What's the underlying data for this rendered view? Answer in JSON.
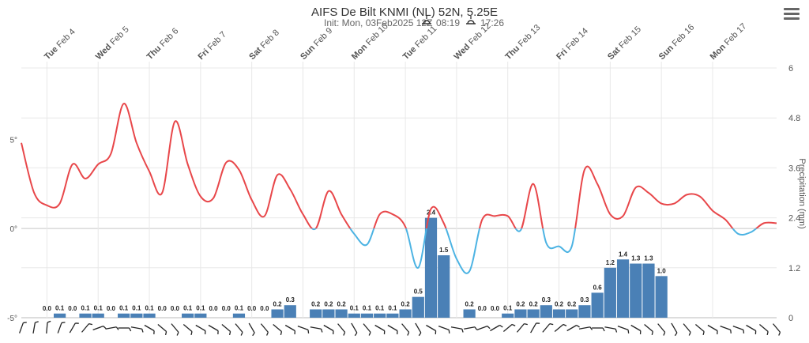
{
  "title": "AIFS De Bilt KNMI (NL) 52N, 5.25E",
  "subtitle": {
    "init": "Init: Mon, 03Feb2025 12Z",
    "sunrise": "08:19",
    "sunset": "17:26"
  },
  "menu_icon": "hamburger-menu-icon",
  "colors": {
    "temp_above": "#e8474a",
    "temp_below": "#4cb3e3",
    "precip": "#4a80b6",
    "grid": "#e8e8e8",
    "axis_text": "#555555"
  },
  "chart_data": {
    "type": "line+bar",
    "x_range": [
      "2025-02-03 12:00",
      "2025-02-18 06:00"
    ],
    "day_labels": [
      {
        "date": "2025-02-04",
        "day": "Tue",
        "label": "Feb 4"
      },
      {
        "date": "2025-02-05",
        "day": "Wed",
        "label": "Feb 5"
      },
      {
        "date": "2025-02-06",
        "day": "Thu",
        "label": "Feb 6"
      },
      {
        "date": "2025-02-07",
        "day": "Fri",
        "label": "Feb 7"
      },
      {
        "date": "2025-02-08",
        "day": "Sat",
        "label": "Feb 8"
      },
      {
        "date": "2025-02-09",
        "day": "Sun",
        "label": "Feb 9"
      },
      {
        "date": "2025-02-10",
        "day": "Mon",
        "label": "Feb 10"
      },
      {
        "date": "2025-02-11",
        "day": "Tue",
        "label": "Feb 11"
      },
      {
        "date": "2025-02-12",
        "day": "Wed",
        "label": "Feb 12"
      },
      {
        "date": "2025-02-13",
        "day": "Thu",
        "label": "Feb 13"
      },
      {
        "date": "2025-02-14",
        "day": "Fri",
        "label": "Feb 14"
      },
      {
        "date": "2025-02-15",
        "day": "Sat",
        "label": "Feb 15"
      },
      {
        "date": "2025-02-16",
        "day": "Sun",
        "label": "Feb 16"
      },
      {
        "date": "2025-02-17",
        "day": "Mon",
        "label": "Feb 17"
      }
    ],
    "y_left": {
      "ticks": [
        "5°",
        "0°",
        "-5°"
      ],
      "tick_values": [
        5,
        0,
        -5
      ],
      "range": [
        -5,
        9
      ]
    },
    "y_right": {
      "label": "Precipitation (mm)",
      "ticks": [
        "6",
        "4.8",
        "3.6",
        "2.4",
        "1.2",
        "0"
      ],
      "tick_values": [
        6,
        4.8,
        3.6,
        2.4,
        1.2,
        0
      ],
      "range": [
        0,
        6
      ]
    },
    "temperature": {
      "time": [
        "2025-02-03 12:00",
        "2025-02-03 18:00",
        "2025-02-04 00:00",
        "2025-02-04 06:00",
        "2025-02-04 12:00",
        "2025-02-04 18:00",
        "2025-02-05 00:00",
        "2025-02-05 06:00",
        "2025-02-05 12:00",
        "2025-02-05 18:00",
        "2025-02-06 00:00",
        "2025-02-06 06:00",
        "2025-02-06 12:00",
        "2025-02-06 18:00",
        "2025-02-07 00:00",
        "2025-02-07 06:00",
        "2025-02-07 12:00",
        "2025-02-07 18:00",
        "2025-02-08 00:00",
        "2025-02-08 06:00",
        "2025-02-08 12:00",
        "2025-02-08 18:00",
        "2025-02-09 00:00",
        "2025-02-09 06:00",
        "2025-02-09 12:00",
        "2025-02-09 18:00",
        "2025-02-10 00:00",
        "2025-02-10 06:00",
        "2025-02-10 12:00",
        "2025-02-10 18:00",
        "2025-02-11 00:00",
        "2025-02-11 06:00",
        "2025-02-11 12:00",
        "2025-02-11 18:00",
        "2025-02-12 00:00",
        "2025-02-12 06:00",
        "2025-02-12 12:00",
        "2025-02-12 18:00",
        "2025-02-13 00:00",
        "2025-02-13 06:00",
        "2025-02-13 12:00",
        "2025-02-13 18:00",
        "2025-02-14 00:00",
        "2025-02-14 06:00",
        "2025-02-14 12:00",
        "2025-02-14 18:00",
        "2025-02-15 00:00",
        "2025-02-15 06:00",
        "2025-02-15 12:00",
        "2025-02-15 18:00",
        "2025-02-16 00:00",
        "2025-02-16 06:00",
        "2025-02-16 12:00",
        "2025-02-16 18:00",
        "2025-02-17 00:00",
        "2025-02-17 06:00",
        "2025-02-17 12:00",
        "2025-02-17 18:00",
        "2025-02-18 00:00",
        "2025-02-18 06:00"
      ],
      "values": [
        4.8,
        2.0,
        1.3,
        1.4,
        3.6,
        2.8,
        3.6,
        4.2,
        7.0,
        4.8,
        3.2,
        2.0,
        6.0,
        3.6,
        1.8,
        1.7,
        3.7,
        3.3,
        1.6,
        0.7,
        3.0,
        2.2,
        0.8,
        0.0,
        2.1,
        0.8,
        -0.3,
        -0.9,
        0.8,
        0.8,
        0.1,
        -2.2,
        1.1,
        0.3,
        -1.7,
        -2.4,
        0.5,
        0.7,
        0.7,
        -0.1,
        2.5,
        -0.8,
        -1.0,
        -1.0,
        3.3,
        2.5,
        0.8,
        0.7,
        2.3,
        2.0,
        1.4,
        1.4,
        1.9,
        1.8,
        1.0,
        0.5,
        -0.3,
        -0.2,
        0.3,
        0.3
      ]
    },
    "precipitation": {
      "time": [
        "2025-02-04 00:00",
        "2025-02-04 06:00",
        "2025-02-04 12:00",
        "2025-02-04 18:00",
        "2025-02-05 00:00",
        "2025-02-05 06:00",
        "2025-02-05 12:00",
        "2025-02-05 18:00",
        "2025-02-06 00:00",
        "2025-02-06 06:00",
        "2025-02-06 12:00",
        "2025-02-06 18:00",
        "2025-02-07 00:00",
        "2025-02-07 06:00",
        "2025-02-07 12:00",
        "2025-02-07 18:00",
        "2025-02-08 00:00",
        "2025-02-08 06:00",
        "2025-02-08 12:00",
        "2025-02-08 18:00",
        "2025-02-09 06:00",
        "2025-02-09 12:00",
        "2025-02-09 18:00",
        "2025-02-10 00:00",
        "2025-02-10 06:00",
        "2025-02-10 12:00",
        "2025-02-10 18:00",
        "2025-02-11 00:00",
        "2025-02-11 06:00",
        "2025-02-11 12:00",
        "2025-02-11 18:00",
        "2025-02-12 06:00",
        "2025-02-12 12:00",
        "2025-02-12 18:00",
        "2025-02-13 00:00",
        "2025-02-13 06:00",
        "2025-02-13 12:00",
        "2025-02-13 18:00",
        "2025-02-14 00:00",
        "2025-02-14 06:00",
        "2025-02-14 12:00",
        "2025-02-14 18:00",
        "2025-02-15 00:00",
        "2025-02-15 06:00",
        "2025-02-15 12:00",
        "2025-02-15 18:00",
        "2025-02-16 00:00",
        "2025-02-16 06:00",
        "2025-02-16 12:00",
        "2025-02-16 18:00",
        "2025-02-17 00:00",
        "2025-02-17 06:00",
        "2025-02-17 12:00",
        "2025-02-17 18:00"
      ],
      "values": [
        0.0,
        0.1,
        0.0,
        0.1,
        0.1,
        0.0,
        0.1,
        0.1,
        0.1,
        0.0,
        0.0,
        0.1,
        0.1,
        0.0,
        0.0,
        0.1,
        0.0,
        0.0,
        0.2,
        0.3,
        0.2,
        0.2,
        0.2,
        0.1,
        0.1,
        0.1,
        0.1,
        0.2,
        0.5,
        2.4,
        1.5,
        0.2,
        0.0,
        0.0,
        0.1,
        0.2,
        0.2,
        0.3,
        0.2,
        0.2,
        0.3,
        0.6,
        1.2,
        1.4,
        1.3,
        1.3,
        1.0,
        0.0,
        0.0,
        0.0,
        0.0,
        0.0,
        0.0,
        0.0
      ],
      "labels": [
        "0.0",
        "0.1",
        "0.0",
        "0.1",
        "0.1",
        "0.0",
        "0.1",
        "0.1",
        "0.1",
        "0.0",
        "0.0",
        "0.1",
        "0.1",
        "0.0",
        "0.0",
        "0.1",
        "0.0",
        "0.0",
        "0.2",
        "0.3",
        "0.2",
        "0.2",
        "0.2",
        "0.1",
        "0.1",
        "0.1",
        "0.1",
        "0.2",
        "0.5",
        "2.4",
        "1.5",
        "0.2",
        "0.0",
        "0.0",
        "0.1",
        "0.2",
        "0.2",
        "0.3",
        "0.2",
        "0.2",
        "0.3",
        "0.6",
        "1.2",
        "1.4",
        "1.3",
        "1.3",
        "1.0",
        "",
        "",
        "",
        "",
        "",
        "",
        ""
      ]
    },
    "wind_barb_directions_deg": [
      200,
      190,
      185,
      200,
      210,
      220,
      250,
      260,
      270,
      280,
      300,
      310,
      320,
      310,
      300,
      300,
      310,
      320,
      330,
      320,
      310,
      300,
      290,
      280,
      300,
      320,
      330,
      320,
      300,
      300,
      320,
      330,
      300,
      290,
      280,
      260,
      250,
      240,
      230,
      220,
      210,
      220,
      230,
      240,
      260,
      270,
      280,
      290,
      300,
      310,
      320,
      330,
      320,
      310,
      300,
      290,
      290,
      300,
      310,
      320
    ]
  }
}
